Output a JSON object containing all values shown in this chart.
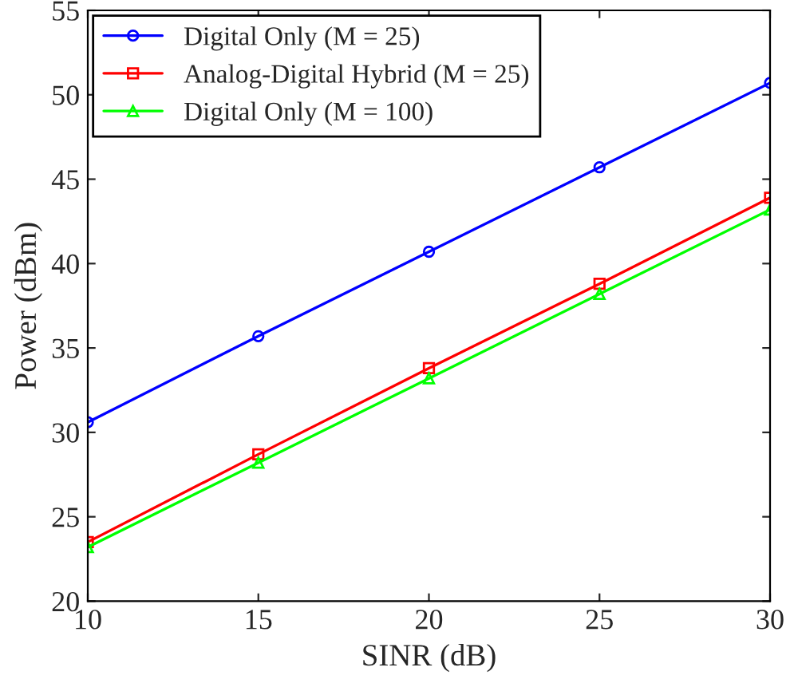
{
  "chart_data": {
    "type": "line",
    "xlabel": "SINR (dB)",
    "ylabel": "Power (dBm)",
    "x": [
      10,
      15,
      20,
      25,
      30
    ],
    "series": [
      {
        "name": "Digital Only (M = 25)",
        "color": "#0000ff",
        "marker": "circle",
        "values": [
          30.6,
          35.7,
          40.7,
          45.7,
          50.7
        ]
      },
      {
        "name": "Analog-Digital Hybrid (M = 25)",
        "color": "#ff0000",
        "marker": "square",
        "values": [
          23.5,
          28.7,
          33.8,
          38.8,
          43.9
        ]
      },
      {
        "name": "Digital Only (M = 100)",
        "color": "#00ff00",
        "marker": "triangle",
        "values": [
          23.2,
          28.2,
          33.2,
          38.2,
          43.2
        ]
      }
    ],
    "xlim": [
      10,
      30
    ],
    "xticks": [
      10,
      15,
      20,
      25,
      30
    ],
    "ylim": [
      20,
      55
    ],
    "yticks": [
      20,
      25,
      30,
      35,
      40,
      45,
      50,
      55
    ],
    "grid": false,
    "legend": "top left",
    "line_style": "solid"
  }
}
